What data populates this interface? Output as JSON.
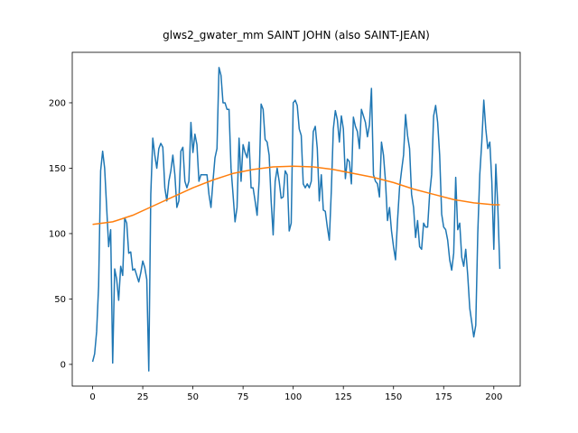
{
  "chart_data": {
    "type": "line",
    "title": "glws2_gwater_mm SAINT JOHN (also SAINT-JEAN)",
    "x": [
      0,
      1,
      2,
      3,
      4,
      5,
      6,
      7,
      8,
      9,
      10,
      11,
      12,
      13,
      14,
      15,
      16,
      17,
      18,
      19,
      20,
      21,
      22,
      23,
      24,
      25,
      26,
      27,
      28,
      29,
      30,
      31,
      32,
      33,
      34,
      35,
      36,
      37,
      38,
      39,
      40,
      41,
      42,
      43,
      44,
      45,
      46,
      47,
      48,
      49,
      50,
      51,
      52,
      53,
      54,
      55,
      56,
      57,
      58,
      59,
      60,
      61,
      62,
      63,
      64,
      65,
      66,
      67,
      68,
      69,
      70,
      71,
      72,
      73,
      74,
      75,
      76,
      77,
      78,
      79,
      80,
      81,
      82,
      83,
      84,
      85,
      86,
      87,
      88,
      89,
      90,
      91,
      92,
      93,
      94,
      95,
      96,
      97,
      98,
      99,
      100,
      101,
      102,
      103,
      104,
      105,
      106,
      107,
      108,
      109,
      110,
      111,
      112,
      113,
      114,
      115,
      116,
      117,
      118,
      119,
      120,
      121,
      122,
      123,
      124,
      125,
      126,
      127,
      128,
      129,
      130,
      131,
      132,
      133,
      134,
      135,
      136,
      137,
      138,
      139,
      140,
      141,
      142,
      143,
      144,
      145,
      146,
      147,
      148,
      149,
      150,
      151,
      152,
      153,
      154,
      155,
      156,
      157,
      158,
      159,
      160,
      161,
      162,
      163,
      164,
      165,
      166,
      167,
      168,
      169,
      170,
      171,
      172,
      173,
      174,
      175,
      176,
      177,
      178,
      179,
      180,
      181,
      182,
      183,
      184,
      185,
      186,
      187,
      188,
      189,
      190,
      191,
      192,
      193,
      194,
      195,
      196,
      197,
      198,
      199,
      200,
      201,
      202,
      203
    ],
    "series": [
      {
        "color": "#1f77b4",
        "values": [
          2,
          8,
          25,
          60,
          148,
          163,
          150,
          120,
          90,
          103,
          1,
          73,
          65,
          49,
          75,
          68,
          112,
          108,
          85,
          86,
          72,
          73,
          68,
          63,
          70,
          79,
          74,
          65,
          -5,
          130,
          173,
          160,
          150,
          165,
          169,
          166,
          135,
          125,
          140,
          148,
          160,
          145,
          120,
          125,
          163,
          166,
          140,
          135,
          140,
          185,
          162,
          176,
          168,
          140,
          145,
          145,
          145,
          145,
          130,
          120,
          140,
          158,
          165,
          227,
          221,
          200,
          200,
          195,
          195,
          150,
          130,
          109,
          120,
          173,
          140,
          168,
          162,
          158,
          170,
          135,
          135,
          125,
          114,
          140,
          199,
          195,
          172,
          170,
          160,
          125,
          99,
          140,
          150,
          140,
          127,
          128,
          148,
          145,
          102,
          108,
          200,
          202,
          198,
          180,
          175,
          138,
          135,
          138,
          135,
          140,
          178,
          182,
          165,
          125,
          145,
          118,
          117,
          105,
          95,
          133,
          180,
          194,
          187,
          170,
          190,
          180,
          142,
          157,
          155,
          138,
          189,
          182,
          178,
          165,
          195,
          190,
          185,
          174,
          183,
          211,
          145,
          140,
          138,
          128,
          170,
          160,
          140,
          110,
          120,
          102,
          90,
          80,
          110,
          135,
          148,
          160,
          191,
          175,
          165,
          130,
          120,
          97,
          110,
          90,
          88,
          108,
          105,
          105,
          130,
          145,
          190,
          198,
          185,
          160,
          115,
          105,
          103,
          95,
          80,
          72,
          85,
          143,
          103,
          108,
          82,
          75,
          88,
          68,
          43,
          32,
          21,
          30,
          100,
          145,
          170,
          202,
          180,
          165,
          170,
          140,
          88,
          153,
          120,
          73
        ]
      },
      {
        "color": "#ff7f0e",
        "x": [
          0,
          10,
          20,
          30,
          40,
          50,
          60,
          70,
          80,
          90,
          100,
          110,
          120,
          130,
          140,
          150,
          160,
          170,
          180,
          190,
          200,
          203
        ],
        "values": [
          107,
          109,
          114,
          121,
          128,
          135,
          141,
          146,
          149,
          151,
          151.5,
          151,
          149,
          146,
          143,
          139,
          134,
          130,
          126,
          123.5,
          122,
          122
        ]
      }
    ],
    "xlim": [
      -10.15,
      213.15
    ],
    "ylim": [
      -16.6,
      238.6
    ],
    "xticks": [
      0,
      25,
      50,
      75,
      100,
      125,
      150,
      175,
      200
    ],
    "yticks": [
      0,
      50,
      100,
      150,
      200
    ]
  }
}
